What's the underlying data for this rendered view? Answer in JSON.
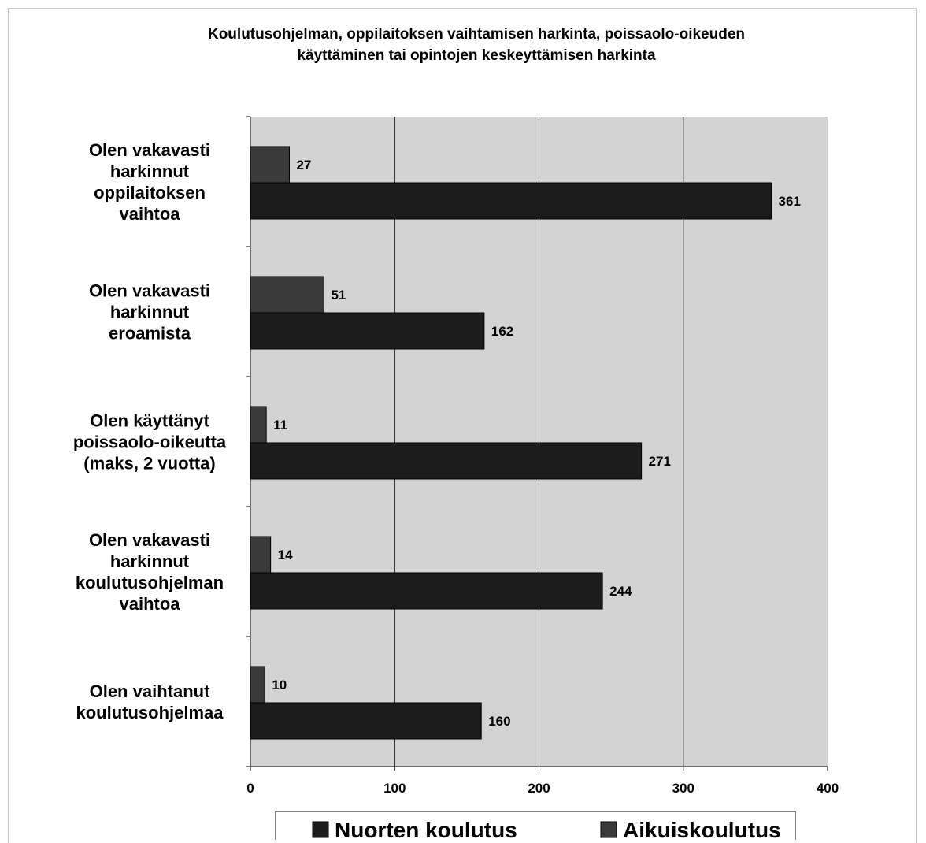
{
  "chart_data": {
    "type": "bar",
    "orientation": "horizontal",
    "title_lines": [
      "Koulutusohjelman, oppilaitoksen vaihtamisen harkinta, poissaolo-oikeuden",
      "käyttäminen tai opintojen keskeyttämisen harkinta"
    ],
    "categories": [
      [
        "Olen vakavasti",
        "harkinnut",
        "oppilaitoksen",
        "vaihtoa"
      ],
      [
        "Olen vakavasti",
        "harkinnut",
        "eroamista"
      ],
      [
        "Olen käyttänyt",
        "poissaolo-oikeutta",
        "(maks, 2 vuotta)"
      ],
      [
        "Olen vakavasti",
        "harkinnut",
        "koulutusohjelman",
        "vaihtoa"
      ],
      [
        "Olen vaihtanut",
        "koulutusohjelmaa"
      ]
    ],
    "series": [
      {
        "name": "Aikuiskoulutus",
        "color": "#3a3a3a",
        "values": [
          27,
          51,
          11,
          14,
          10
        ]
      },
      {
        "name": "Nuorten koulutus",
        "color": "#1c1c1c",
        "values": [
          361,
          162,
          271,
          244,
          160
        ]
      }
    ],
    "legend_order": [
      "Nuorten koulutus",
      "Aikuiskoulutus"
    ],
    "xlim": [
      0,
      400
    ],
    "xticks": [
      0,
      100,
      200,
      300,
      400
    ],
    "grid": true,
    "plot_background": "#d3d3d3",
    "legend_position": "bottom"
  }
}
